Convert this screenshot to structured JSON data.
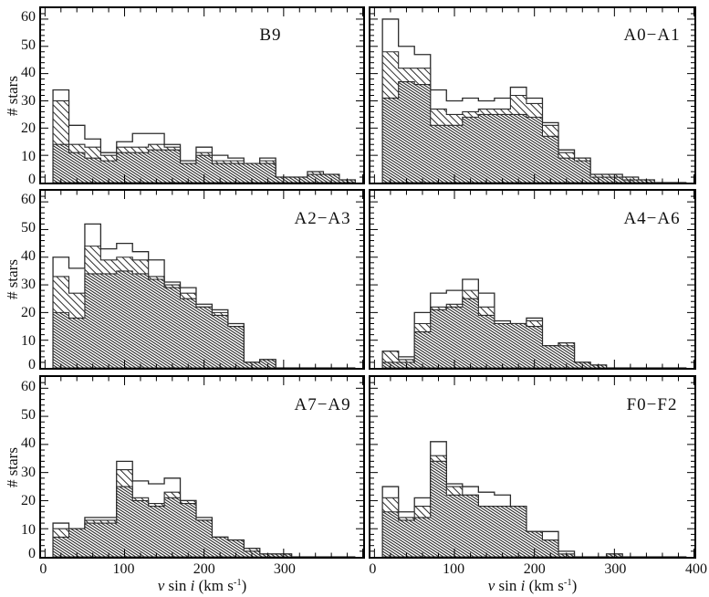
{
  "figure": {
    "ylabel": "# stars",
    "xlabel_plain": "v sin i (km s-1)",
    "xlabel_segments": [
      {
        "text": "v",
        "italic": true,
        "sup": false
      },
      {
        "text": " sin ",
        "italic": false,
        "sup": false
      },
      {
        "text": "i",
        "italic": true,
        "sup": false
      },
      {
        "text": " (km s",
        "italic": false,
        "sup": false
      },
      {
        "text": "-1",
        "italic": false,
        "sup": true
      },
      {
        "text": ")",
        "italic": false,
        "sup": false
      }
    ],
    "ink_color": "#111111",
    "background_color": "#ffffff"
  },
  "chart_data": {
    "type": "histogram-grid",
    "grid": {
      "rows": 3,
      "cols": 2
    },
    "bin_start_kms": 10,
    "bin_width_kms": 20,
    "n_bins": 19,
    "xlim": [
      -5,
      400
    ],
    "ylim": [
      0,
      64
    ],
    "x_major_ticks": [
      0,
      100,
      200,
      300,
      400
    ],
    "x_minor_step": 20,
    "y_major_ticks": [
      0,
      10,
      20,
      30,
      40,
      50,
      60
    ],
    "y_minor_step": 2,
    "x_tick_labels_left_panels": [
      "0",
      "100",
      "200",
      "300"
    ],
    "x_tick_labels_right_panels": [
      "0",
      "100",
      "200",
      "300",
      "400"
    ],
    "y_tick_labels": [
      "0",
      "10",
      "20",
      "30",
      "40",
      "50",
      "60"
    ],
    "series_styles": [
      {
        "key": "open",
        "style": "open outline, white fill"
      },
      {
        "key": "hatched",
        "style": "sparse diagonal hatch"
      },
      {
        "key": "filled",
        "style": "dense diagonal hatch"
      }
    ],
    "panels": [
      {
        "title": "B9",
        "row": 0,
        "col": 0,
        "open": [
          34,
          21,
          16,
          11,
          15,
          18,
          18,
          14,
          8,
          13,
          10,
          9,
          7,
          9,
          2,
          2,
          4,
          3,
          1
        ],
        "hatched": [
          30,
          14,
          13,
          10,
          13,
          13,
          14,
          13,
          7,
          11,
          8,
          8,
          7,
          8,
          2,
          2,
          4,
          3,
          1
        ],
        "filled": [
          14,
          11,
          9,
          8,
          11,
          11,
          12,
          12,
          7,
          10,
          7,
          7,
          7,
          7,
          2,
          2,
          3,
          3,
          1
        ]
      },
      {
        "title": "A0−A1",
        "row": 0,
        "col": 1,
        "open": [
          60,
          50,
          47,
          34,
          30,
          31,
          30,
          31,
          35,
          31,
          22,
          12,
          9,
          3,
          3,
          2,
          1,
          0,
          0
        ],
        "hatched": [
          48,
          42,
          42,
          27,
          25,
          26,
          27,
          27,
          32,
          29,
          21,
          11,
          9,
          3,
          3,
          2,
          1,
          0,
          0
        ],
        "filled": [
          31,
          37,
          36,
          21,
          21,
          24,
          25,
          25,
          25,
          24,
          17,
          9,
          8,
          2,
          2,
          1,
          1,
          0,
          0
        ]
      },
      {
        "title": "A2−A3",
        "row": 1,
        "col": 0,
        "open": [
          40,
          36,
          52,
          43,
          45,
          42,
          39,
          31,
          29,
          23,
          21,
          16,
          2,
          3,
          0,
          0,
          0,
          0,
          0
        ],
        "hatched": [
          33,
          27,
          44,
          39,
          40,
          39,
          33,
          30,
          27,
          22,
          20,
          15,
          2,
          3,
          0,
          0,
          0,
          0,
          0
        ],
        "filled": [
          20,
          18,
          34,
          34,
          35,
          34,
          32,
          29,
          25,
          22,
          19,
          15,
          2,
          3,
          0,
          0,
          0,
          0,
          0
        ]
      },
      {
        "title": "A4−A6",
        "row": 1,
        "col": 1,
        "open": [
          6,
          4,
          20,
          27,
          28,
          32,
          27,
          17,
          16,
          18,
          8,
          9,
          2,
          1,
          0,
          0,
          0,
          0,
          0
        ],
        "hatched": [
          6,
          3,
          16,
          22,
          23,
          28,
          22,
          16,
          16,
          17,
          8,
          9,
          2,
          1,
          0,
          0,
          0,
          0,
          0
        ],
        "filled": [
          2,
          2,
          13,
          21,
          22,
          25,
          19,
          16,
          16,
          15,
          8,
          8,
          2,
          1,
          0,
          0,
          0,
          0,
          0
        ]
      },
      {
        "title": "A7−A9",
        "row": 2,
        "col": 0,
        "open": [
          12,
          10,
          14,
          14,
          34,
          27,
          26,
          28,
          20,
          14,
          7,
          6,
          3,
          1,
          1,
          0,
          0,
          0,
          0
        ],
        "hatched": [
          10,
          10,
          13,
          13,
          31,
          21,
          19,
          23,
          20,
          13,
          7,
          6,
          3,
          1,
          1,
          0,
          0,
          0,
          0
        ],
        "filled": [
          7,
          10,
          12,
          12,
          25,
          20,
          18,
          21,
          19,
          13,
          7,
          6,
          2,
          1,
          1,
          0,
          0,
          0,
          0
        ]
      },
      {
        "title": "F0−F2",
        "row": 2,
        "col": 1,
        "open": [
          25,
          16,
          21,
          41,
          26,
          25,
          23,
          22,
          18,
          9,
          9,
          2,
          0,
          0,
          1,
          0,
          0,
          0,
          0
        ],
        "hatched": [
          21,
          14,
          18,
          36,
          25,
          22,
          18,
          18,
          18,
          9,
          6,
          1,
          0,
          0,
          1,
          0,
          0,
          0,
          0
        ],
        "filled": [
          16,
          13,
          14,
          34,
          22,
          22,
          18,
          18,
          18,
          9,
          6,
          1,
          0,
          0,
          1,
          0,
          0,
          0,
          0
        ]
      }
    ]
  }
}
